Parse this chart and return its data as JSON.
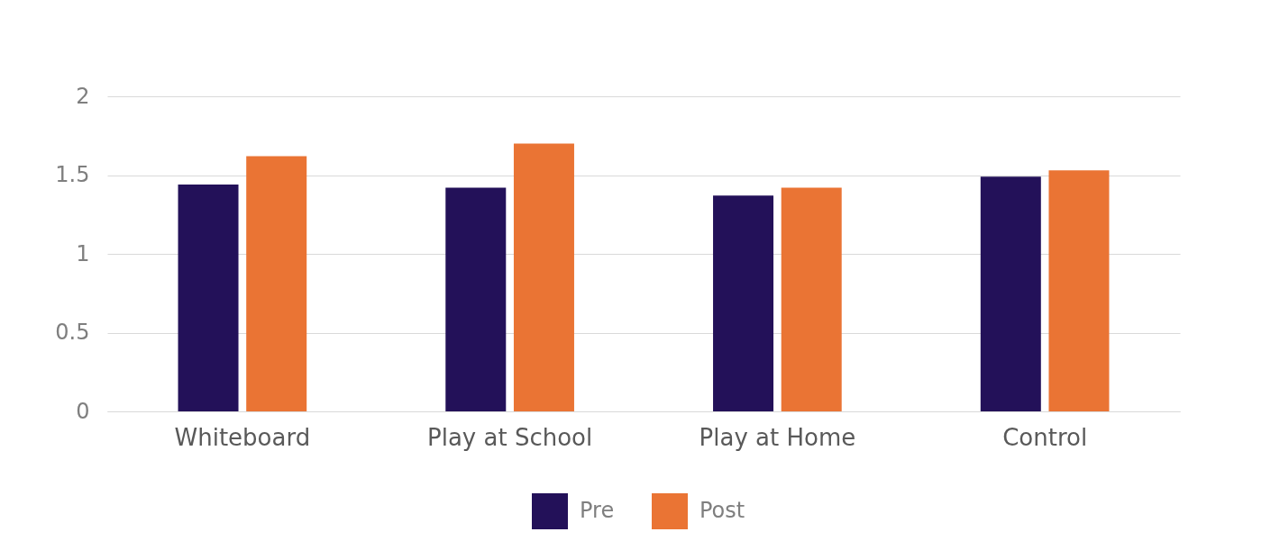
{
  "chart_data": {
    "type": "bar",
    "categories": [
      "Whiteboard",
      "Play at School",
      "Play at Home",
      "Control"
    ],
    "series": [
      {
        "name": "Pre",
        "color": "#231159",
        "values": [
          1.44,
          1.42,
          1.37,
          1.49
        ]
      },
      {
        "name": "Post",
        "color": "#ea7434",
        "values": [
          1.62,
          1.7,
          1.42,
          1.53
        ]
      }
    ],
    "ylim": [
      0,
      2
    ],
    "yticks": [
      {
        "value": 0,
        "label": "0"
      },
      {
        "value": 0.5,
        "label": "0.5"
      },
      {
        "value": 1,
        "label": "1"
      },
      {
        "value": 1.5,
        "label": "1.5"
      },
      {
        "value": 2,
        "label": "2"
      }
    ],
    "grid": "y",
    "legend": "bottom"
  }
}
